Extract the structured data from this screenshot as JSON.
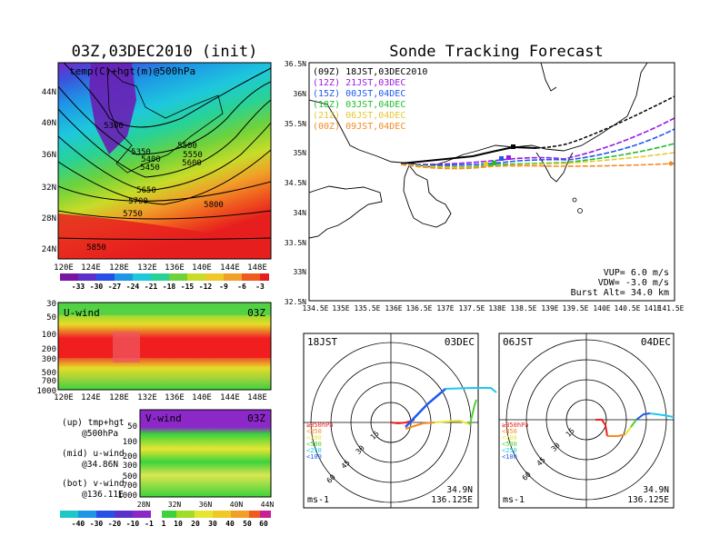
{
  "left_title": "03Z,03DEC2010 (init)",
  "right_title": "Sonde Tracking Forecast",
  "colors": {
    "purple": "#9b19e6",
    "blue": "#1e5af0",
    "cyan": "#1ec8f0",
    "teal": "#28d2a0",
    "green": "#4bd232",
    "yellow": "#e6e632",
    "orange": "#f0a028",
    "red": "#f01e1e",
    "black": "#000000"
  },
  "panel_500": {
    "label": "temp(C)+hgt(m)@500hPa",
    "x_ticks": [
      "120E",
      "124E",
      "128E",
      "132E",
      "136E",
      "140E",
      "144E",
      "148E"
    ],
    "y_ticks": [
      "24N",
      "28N",
      "32N",
      "36N",
      "40N",
      "44N"
    ],
    "contour_labels": [
      "5300",
      "5350",
      "5400",
      "5450",
      "5500",
      "5550",
      "5600",
      "5650",
      "5700",
      "5750",
      "5800",
      "5850"
    ],
    "colorbar_labels": [
      "-33",
      "-30",
      "-27",
      "-24",
      "-21",
      "-18",
      "-15",
      "-12",
      "-9",
      "-6",
      "-3"
    ]
  },
  "panel_u": {
    "label": "U-wind",
    "time": "03Z",
    "x_ticks": [
      "120E",
      "124E",
      "128E",
      "132E",
      "136E",
      "140E",
      "144E",
      "148E"
    ],
    "y_ticks": [
      "30",
      "50",
      "100",
      "200",
      "300",
      "500",
      "700",
      "1000"
    ]
  },
  "panel_v": {
    "label": "V-wind",
    "time": "03Z",
    "x_ticks": [
      "28N",
      "32N",
      "36N",
      "40N",
      "44N"
    ],
    "y_ticks": [
      "50",
      "100",
      "200",
      "300",
      "500",
      "700",
      "1000"
    ],
    "colorbar_labels": [
      "-40",
      "-30",
      "-20",
      "-10",
      "-1",
      "1",
      "10",
      "20",
      "30",
      "40",
      "50",
      "60"
    ]
  },
  "legend_notes": [
    {
      "head": "(up) tmp+hgt",
      "sub": "@500hPa"
    },
    {
      "head": "(mid) u-wind",
      "sub": "@34.86N"
    },
    {
      "head": "(bot) v-wind",
      "sub": "@136.11E"
    }
  ],
  "track_map": {
    "x_ticks": [
      "134.5E",
      "135E",
      "135.5E",
      "136E",
      "136.5E",
      "137E",
      "137.5E",
      "138E",
      "138.5E",
      "139E",
      "139.5E",
      "140E",
      "140.5E",
      "141E",
      "141.5E"
    ],
    "y_ticks": [
      "36.5N",
      "36N",
      "35.5N",
      "35N",
      "34.5N",
      "34N",
      "33.5N",
      "33N",
      "32.5N"
    ],
    "legend": [
      {
        "text": "(09Z) 18JST,03DEC2010",
        "color": "#000000"
      },
      {
        "text": "(12Z) 21JST,03DEC",
        "color": "#9b19e6"
      },
      {
        "text": "(15Z) 00JST,04DEC",
        "color": "#1e5af0"
      },
      {
        "text": "(18Z) 03JST,04DEC",
        "color": "#1ebe28"
      },
      {
        "text": "(21Z) 06JST,04DEC",
        "color": "#e6c832"
      },
      {
        "text": "(00Z) 09JST,04DEC",
        "color": "#f08c28"
      }
    ],
    "params": [
      "VUP=  6.0 m/s",
      "VDW= -3.0 m/s",
      "Burst Alt= 34.0 km"
    ]
  },
  "hodo_1": {
    "label_left": "18JST",
    "label_right": "03DEC",
    "ring_labels": [
      "15",
      "30",
      "45",
      "60"
    ],
    "pressure_legend": [
      "≥850hPa",
      "<850",
      "<700",
      "<500",
      "<250",
      "<100"
    ],
    "unit": "ms-1",
    "lat": "34.9N",
    "lon": "136.125E"
  },
  "hodo_2": {
    "label_left": "06JST",
    "label_right": "04DEC",
    "ring_labels": [
      "15",
      "30",
      "45",
      "60"
    ],
    "pressure_legend": [
      "≥850hPa",
      "<850",
      "<700",
      "<500",
      "<250",
      "<100"
    ],
    "unit": "ms-1",
    "lat": "34.9N",
    "lon": "136.125E"
  }
}
